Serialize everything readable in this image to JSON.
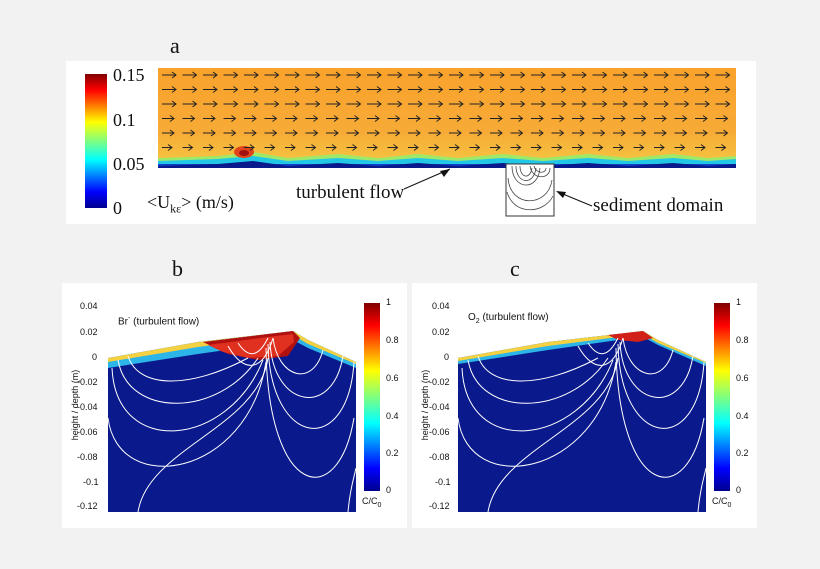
{
  "figure": {
    "panel_a": {
      "label": "a",
      "colorbar_ticks": [
        "0.15",
        "0.1",
        "0.05",
        "0"
      ],
      "colorbar_label": "<U",
      "colorbar_label_sub": "kε",
      "colorbar_label_tail": "> (m/s)",
      "annotation_turbulent": "turbulent flow",
      "annotation_sediment": "sediment domain"
    },
    "panel_b": {
      "label": "b",
      "title": "Br",
      "title_sup": "-",
      "title_tail": "(turbulent flow)",
      "y_ticks": [
        "0.04",
        "0.02",
        "0",
        "-0.02",
        "-0.04",
        "-0.06",
        "-0.08",
        "-0.1",
        "-0.12"
      ],
      "ylabel": "height / depth (m)",
      "colorbar_ticks": [
        "1",
        "0.8",
        "0.6",
        "0.4",
        "0.2",
        "0"
      ],
      "colorbar_label": "C/C",
      "colorbar_label_sub": "0"
    },
    "panel_c": {
      "label": "c",
      "title": "O",
      "title_sub": "2",
      "title_tail": "(turbulent flow)",
      "y_ticks": [
        "0.04",
        "0.02",
        "0",
        "-0.02",
        "-0.04",
        "-0.06",
        "-0.08",
        "-0.1",
        "-0.12"
      ],
      "ylabel": "height / depth (m)",
      "colorbar_ticks": [
        "1",
        "0.8",
        "0.6",
        "0.4",
        "0.2",
        "0"
      ],
      "colorbar_label": "C/C",
      "colorbar_label_sub": "0"
    },
    "colors": {
      "field_orange": "#f7a630",
      "sediment_blue": "#0a1a8c",
      "streamline": "#ffffff"
    }
  }
}
